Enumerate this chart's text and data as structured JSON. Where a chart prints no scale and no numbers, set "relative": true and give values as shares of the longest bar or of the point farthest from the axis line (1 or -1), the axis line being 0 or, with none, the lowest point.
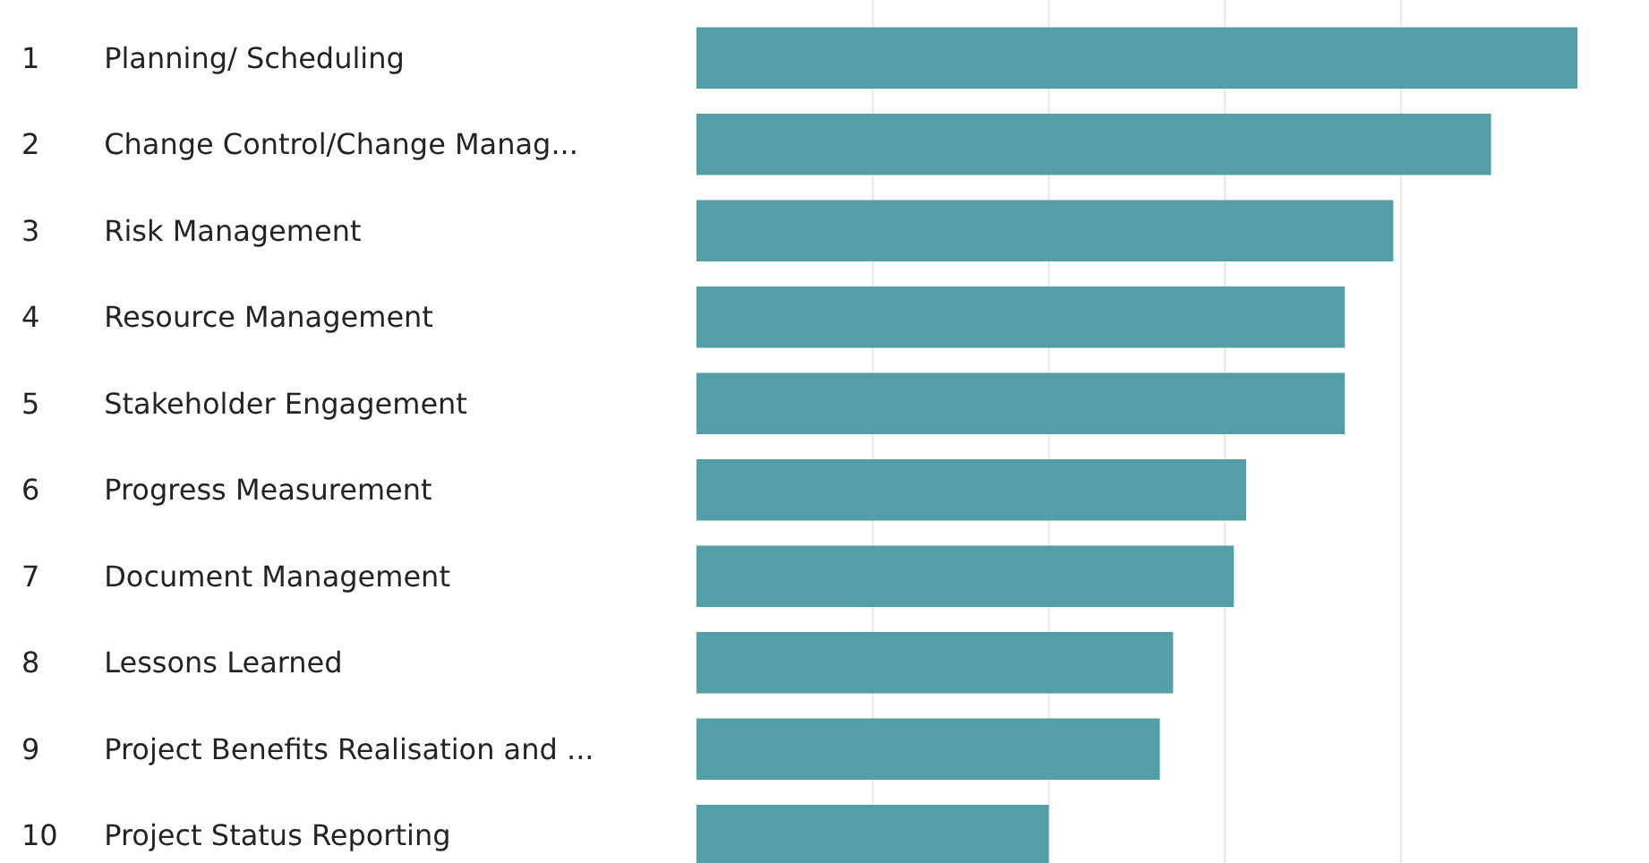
{
  "chart_data": {
    "type": "bar",
    "orientation": "horizontal",
    "relative": true,
    "grid": true,
    "color": "#529fa8",
    "categories": [
      "1 Planning/ Scheduling",
      "2 Change Control/Change Manag...",
      "3 Risk Management",
      "4 Resource Management",
      "5 Stakeholder Engagement",
      "6 Progress Measurement",
      "7 Document Management",
      "8 Lessons Learned",
      "9 Project Benefits Realisation and ...",
      "10 Project Status Reporting"
    ],
    "values": [
      1,
      0.902,
      0.791,
      0.736,
      0.736,
      0.624,
      0.61,
      0.541,
      0.526,
      0.4
    ]
  }
}
